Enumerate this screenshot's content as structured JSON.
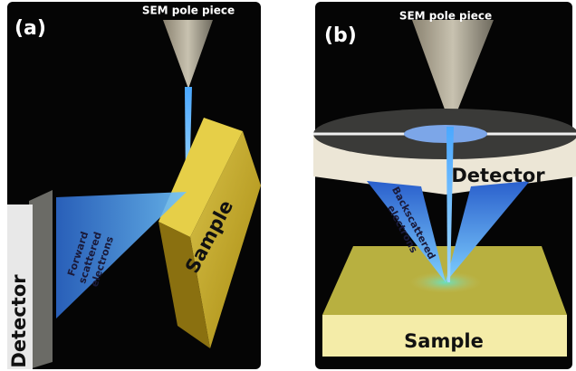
{
  "panels": [
    {
      "label": "(a)",
      "pole_piece": "SEM pole piece",
      "detector": "Detector",
      "sample": "Sample",
      "electrons": [
        "Forward",
        "scattered",
        "electrons"
      ]
    },
    {
      "label": "(b)",
      "pole_piece": "SEM pole piece",
      "detector": "Detector",
      "sample": "Sample",
      "electrons": [
        "Backscattered",
        "electrons"
      ]
    }
  ]
}
